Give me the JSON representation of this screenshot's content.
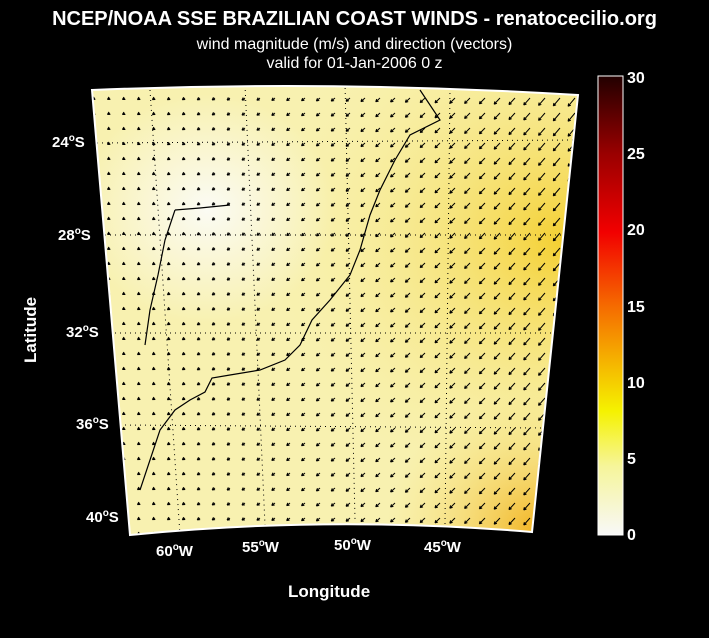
{
  "title": "NCEP/NOAA SSE BRAZILIAN COAST WINDS - renatocecilio.org",
  "subtitle1": "wind magnitude (m/s) and direction (vectors)",
  "subtitle2": "valid for 01-Jan-2006  0 z",
  "xlabel": "Longitude",
  "ylabel": "Latitude",
  "lat_ticks": [
    {
      "value": "24",
      "suffix": "S"
    },
    {
      "value": "28",
      "suffix": "S"
    },
    {
      "value": "32",
      "suffix": "S"
    },
    {
      "value": "36",
      "suffix": "S"
    },
    {
      "value": "40",
      "suffix": "S"
    }
  ],
  "lon_ticks": [
    {
      "value": "60",
      "suffix": "W"
    },
    {
      "value": "55",
      "suffix": "W"
    },
    {
      "value": "50",
      "suffix": "W"
    },
    {
      "value": "45",
      "suffix": "W"
    }
  ],
  "colorbar": {
    "ticks": [
      "30",
      "25",
      "20",
      "15",
      "10",
      "5",
      "0"
    ],
    "range": [
      0,
      30
    ],
    "unit": "m/s",
    "colormap": [
      "#f8f8f8",
      "#f6f590",
      "#f5f200",
      "#f5b800",
      "#f56a00",
      "#f20000",
      "#9a0000",
      "#220000"
    ]
  },
  "chart_data": {
    "type": "heatmap",
    "title": "NCEP/NOAA SSE BRAZILIAN COAST WINDS - renatocecilio.org",
    "xlabel": "Longitude",
    "ylabel": "Latitude",
    "xlim": [
      -62,
      -40
    ],
    "ylim": [
      -41,
      -22
    ],
    "clim": [
      0,
      30
    ],
    "note_values": "wind magnitude mostly 1-6 m/s; maximum ~8-9 m/s in eastern edge; vectors mostly toward SW/W"
  }
}
